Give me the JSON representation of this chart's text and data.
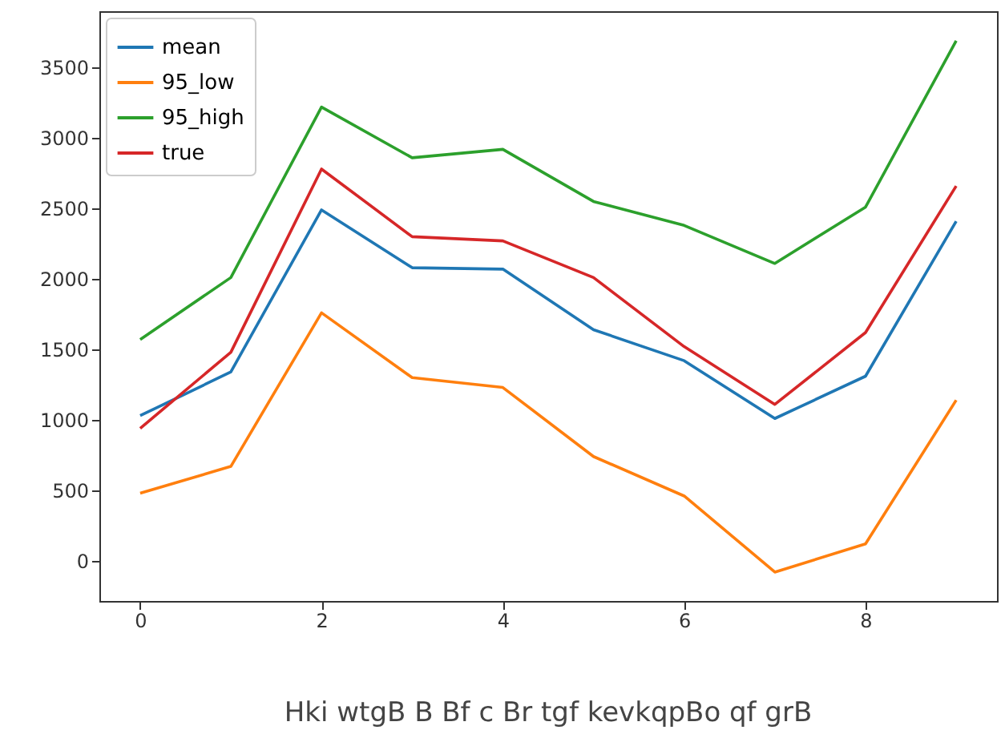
{
  "chart_data": {
    "type": "line",
    "x": [
      0,
      1,
      2,
      3,
      4,
      5,
      6,
      7,
      8,
      9
    ],
    "series": [
      {
        "name": "mean",
        "color": "#1f77b4",
        "values": [
          1030,
          1340,
          2490,
          2080,
          2070,
          1640,
          1420,
          1010,
          1310,
          2410
        ]
      },
      {
        "name": "95_low",
        "color": "#ff7f0e",
        "values": [
          480,
          670,
          1760,
          1300,
          1230,
          740,
          460,
          -80,
          120,
          1140
        ]
      },
      {
        "name": "95_high",
        "color": "#2ca02c",
        "values": [
          1570,
          2010,
          3220,
          2860,
          2920,
          2550,
          2380,
          2110,
          2510,
          3690
        ]
      },
      {
        "name": "true",
        "color": "#d62728",
        "values": [
          940,
          1480,
          2780,
          2300,
          2270,
          2010,
          1520,
          1110,
          1620,
          2660
        ]
      }
    ],
    "xlim": [
      -0.45,
      9.45
    ],
    "xticks": [
      0,
      2,
      4,
      6,
      8
    ],
    "ylim": [
      -285,
      3900
    ],
    "yticks": [
      0,
      500,
      1000,
      1500,
      2000,
      2500,
      3000,
      3500
    ],
    "legend": "top left",
    "grid": false,
    "annotations": [
      "Hki wtgB B Bf c Br tgf kevkqpBo qf grB"
    ]
  }
}
